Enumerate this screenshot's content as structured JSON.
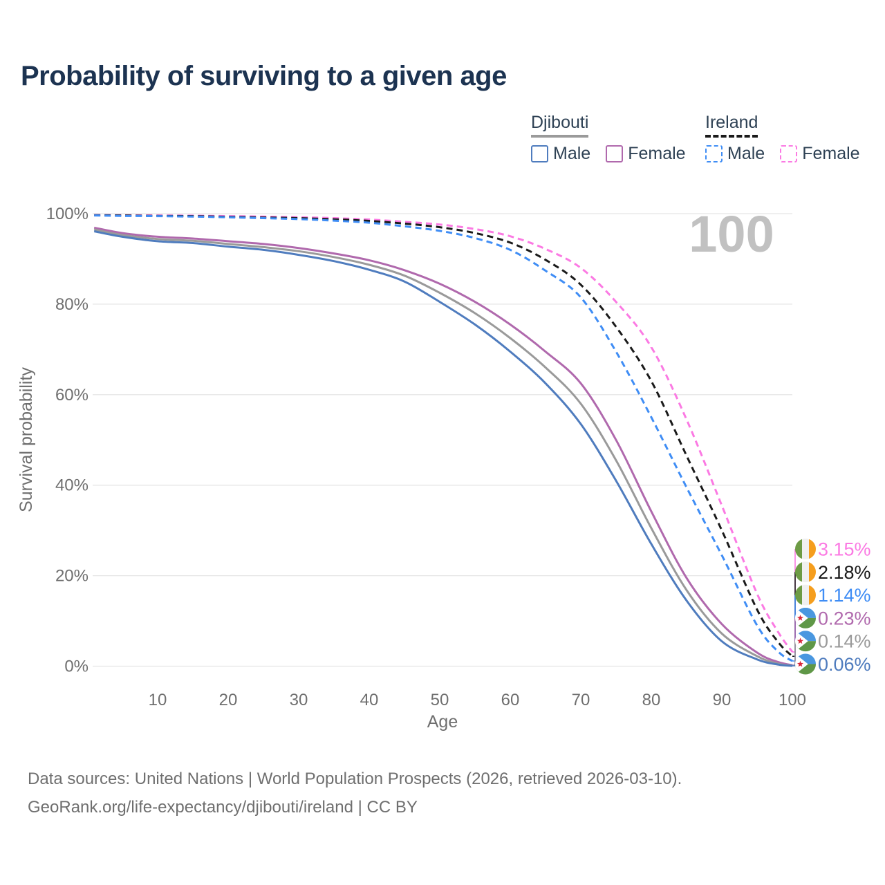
{
  "title": "Probability of surviving to a given age",
  "watermark": "100",
  "colors": {
    "title": "#1c3351",
    "legend_text": "#2e4154",
    "axis_text": "#6f6f6f",
    "gridline": "#e5e5e5",
    "watermark": "#c1c1c1"
  },
  "flags": {
    "ireland": {
      "green": "#6d9b45",
      "white": "#f0f0f0",
      "orange": "#f59e1e"
    },
    "djibouti": {
      "blue": "#4a97e0",
      "green": "#5f9747",
      "white": "#ffffff",
      "red": "#d92638"
    }
  },
  "legend": {
    "groups": [
      {
        "country": "Djibouti",
        "dashed": false,
        "underline_color": "#9a9a9a",
        "items": [
          {
            "label": "Male",
            "color": "#4f7cbe"
          },
          {
            "label": "Female",
            "color": "#b069ad"
          }
        ]
      },
      {
        "country": "Ireland",
        "dashed": true,
        "underline_color": "#1a1a1a",
        "items": [
          {
            "label": "Male",
            "color": "#3f8df5"
          },
          {
            "label": "Female",
            "color": "#fb7ae3"
          }
        ]
      }
    ]
  },
  "chart_data": {
    "type": "line",
    "title": "Probability of surviving to a given age",
    "xlabel": "Age",
    "ylabel": "Survival probability",
    "xlim": [
      0,
      100
    ],
    "ylim": [
      0,
      100
    ],
    "grid": "horizontal",
    "legend_position": "top-right",
    "x_ticks": [
      {
        "value": 10,
        "label": "10"
      },
      {
        "value": 20,
        "label": "20"
      },
      {
        "value": 30,
        "label": "30"
      },
      {
        "value": 40,
        "label": "40"
      },
      {
        "value": 50,
        "label": "50"
      },
      {
        "value": 60,
        "label": "60"
      },
      {
        "value": 70,
        "label": "70"
      },
      {
        "value": 80,
        "label": "80"
      },
      {
        "value": 90,
        "label": "90"
      },
      {
        "value": 100,
        "label": "100"
      }
    ],
    "y_ticks": [
      {
        "value": 0,
        "label": "0%"
      },
      {
        "value": 20,
        "label": "20%"
      },
      {
        "value": 40,
        "label": "40%"
      },
      {
        "value": 60,
        "label": "60%"
      },
      {
        "value": 80,
        "label": "80%"
      },
      {
        "value": 100,
        "label": "100%"
      }
    ],
    "series": [
      {
        "id": "ireland-female",
        "name": "Ireland Female",
        "color": "#fb7ae3",
        "dashed": true,
        "flag": "ireland",
        "end_label": "3.15%",
        "points": [
          [
            1,
            99.7
          ],
          [
            5,
            99.65
          ],
          [
            10,
            99.6
          ],
          [
            15,
            99.55
          ],
          [
            20,
            99.45
          ],
          [
            25,
            99.35
          ],
          [
            30,
            99.2
          ],
          [
            35,
            99.0
          ],
          [
            40,
            98.7
          ],
          [
            45,
            98.2
          ],
          [
            50,
            97.6
          ],
          [
            55,
            96.6
          ],
          [
            60,
            95.0
          ],
          [
            65,
            92.2
          ],
          [
            70,
            88.0
          ],
          [
            75,
            80.5
          ],
          [
            80,
            70.5
          ],
          [
            85,
            54.5
          ],
          [
            90,
            35.5
          ],
          [
            95,
            16.0
          ],
          [
            98,
            7.5
          ],
          [
            100,
            3.15
          ]
        ]
      },
      {
        "id": "ireland-total",
        "name": "Ireland",
        "color": "#1a1a1a",
        "dashed": true,
        "flag": "ireland",
        "end_label": "2.18%",
        "points": [
          [
            1,
            99.65
          ],
          [
            5,
            99.6
          ],
          [
            10,
            99.5
          ],
          [
            15,
            99.45
          ],
          [
            20,
            99.3
          ],
          [
            25,
            99.15
          ],
          [
            30,
            99.0
          ],
          [
            35,
            98.75
          ],
          [
            40,
            98.4
          ],
          [
            45,
            97.8
          ],
          [
            50,
            97.0
          ],
          [
            55,
            95.7
          ],
          [
            60,
            93.6
          ],
          [
            65,
            89.8
          ],
          [
            70,
            84.3
          ],
          [
            75,
            75.0
          ],
          [
            80,
            63.0
          ],
          [
            85,
            46.5
          ],
          [
            90,
            30.0
          ],
          [
            95,
            12.5
          ],
          [
            98,
            5.3
          ],
          [
            100,
            2.18
          ]
        ]
      },
      {
        "id": "ireland-male",
        "name": "Ireland Male",
        "color": "#3f8df5",
        "dashed": true,
        "flag": "ireland",
        "end_label": "1.14%",
        "points": [
          [
            1,
            99.6
          ],
          [
            5,
            99.5
          ],
          [
            10,
            99.45
          ],
          [
            15,
            99.35
          ],
          [
            20,
            99.2
          ],
          [
            25,
            99.0
          ],
          [
            30,
            98.8
          ],
          [
            35,
            98.45
          ],
          [
            40,
            98.0
          ],
          [
            45,
            97.2
          ],
          [
            50,
            96.2
          ],
          [
            55,
            94.6
          ],
          [
            60,
            92.0
          ],
          [
            65,
            87.4
          ],
          [
            70,
            81.5
          ],
          [
            75,
            69.5
          ],
          [
            80,
            55.0
          ],
          [
            85,
            39.5
          ],
          [
            90,
            24.5
          ],
          [
            95,
            9.0
          ],
          [
            98,
            3.2
          ],
          [
            100,
            1.14
          ]
        ]
      },
      {
        "id": "djibouti-female",
        "name": "Djibouti Female",
        "color": "#b069ad",
        "dashed": false,
        "flag": "djibouti",
        "end_label": "0.23%",
        "points": [
          [
            1,
            96.9
          ],
          [
            5,
            95.7
          ],
          [
            10,
            94.9
          ],
          [
            15,
            94.5
          ],
          [
            20,
            93.9
          ],
          [
            25,
            93.3
          ],
          [
            30,
            92.4
          ],
          [
            35,
            91.2
          ],
          [
            40,
            89.7
          ],
          [
            45,
            87.5
          ],
          [
            50,
            84.5
          ],
          [
            55,
            80.5
          ],
          [
            60,
            75.5
          ],
          [
            65,
            69.5
          ],
          [
            70,
            62.5
          ],
          [
            75,
            50.0
          ],
          [
            80,
            34.2
          ],
          [
            85,
            19.5
          ],
          [
            90,
            9.3
          ],
          [
            95,
            3.0
          ],
          [
            98,
            0.9
          ],
          [
            100,
            0.23
          ]
        ]
      },
      {
        "id": "djibouti-total",
        "name": "Djibouti",
        "color": "#9a9a9a",
        "dashed": false,
        "flag": "djibouti",
        "end_label": "0.14%",
        "points": [
          [
            1,
            96.5
          ],
          [
            5,
            95.3
          ],
          [
            10,
            94.4
          ],
          [
            15,
            94.0
          ],
          [
            20,
            93.3
          ],
          [
            25,
            92.6
          ],
          [
            30,
            91.7
          ],
          [
            35,
            90.4
          ],
          [
            40,
            88.7
          ],
          [
            45,
            86.3
          ],
          [
            50,
            82.5
          ],
          [
            55,
            78.0
          ],
          [
            60,
            72.5
          ],
          [
            65,
            66.0
          ],
          [
            70,
            58.0
          ],
          [
            75,
            45.5
          ],
          [
            80,
            30.5
          ],
          [
            85,
            16.8
          ],
          [
            90,
            7.2
          ],
          [
            95,
            2.2
          ],
          [
            98,
            0.55
          ],
          [
            100,
            0.14
          ]
        ]
      },
      {
        "id": "djibouti-male",
        "name": "Djibouti Male",
        "color": "#4f7cbe",
        "dashed": false,
        "flag": "djibouti",
        "end_label": "0.06%",
        "points": [
          [
            1,
            96.1
          ],
          [
            5,
            94.9
          ],
          [
            10,
            93.9
          ],
          [
            15,
            93.5
          ],
          [
            20,
            92.7
          ],
          [
            25,
            92.0
          ],
          [
            30,
            90.9
          ],
          [
            35,
            89.5
          ],
          [
            40,
            87.6
          ],
          [
            45,
            85.0
          ],
          [
            50,
            80.5
          ],
          [
            55,
            75.5
          ],
          [
            60,
            69.5
          ],
          [
            65,
            62.5
          ],
          [
            70,
            53.5
          ],
          [
            75,
            41.0
          ],
          [
            80,
            27.0
          ],
          [
            85,
            14.5
          ],
          [
            90,
            5.5
          ],
          [
            95,
            1.5
          ],
          [
            98,
            0.35
          ],
          [
            100,
            0.06
          ]
        ]
      }
    ]
  },
  "footer": {
    "line1": "Data sources: United Nations | World Population Prospects (2026, retrieved 2026-03-10).",
    "line2": "GeoRank.org/life-expectancy/djibouti/ireland | CC BY"
  }
}
